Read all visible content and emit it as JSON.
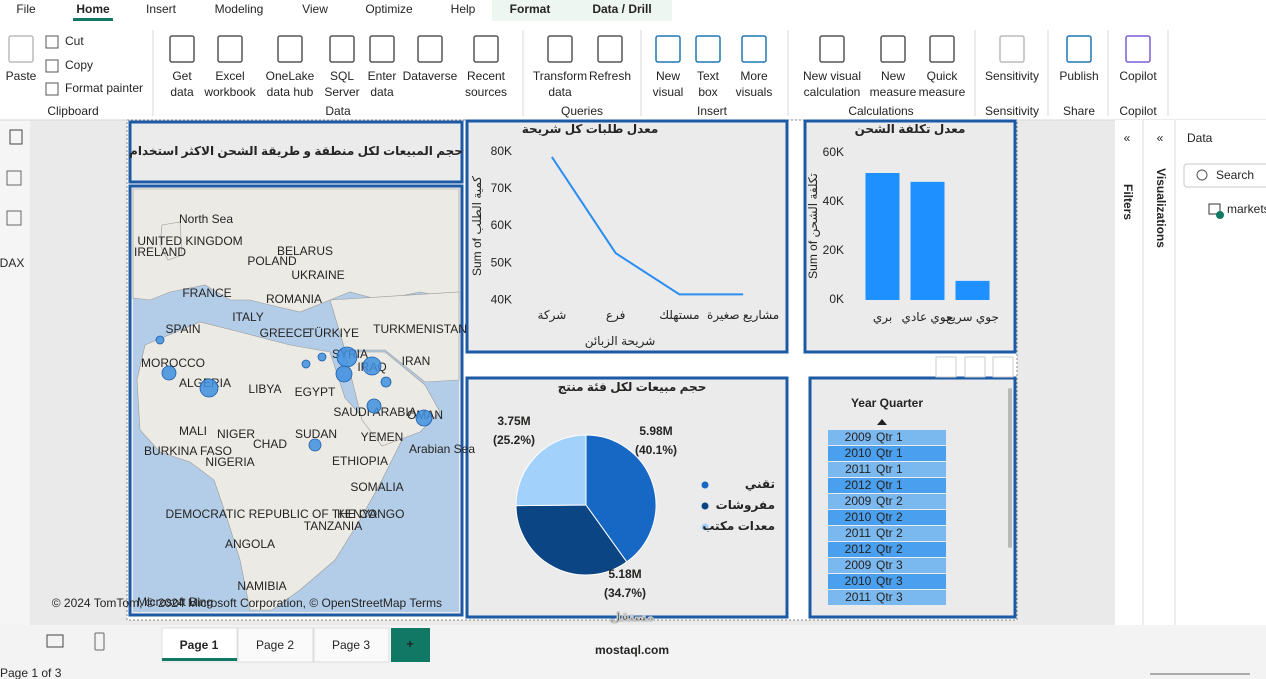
{
  "ribbon": {
    "tabs": [
      "File",
      "Home",
      "Insert",
      "Modeling",
      "View",
      "Optimize",
      "Help"
    ],
    "contextual_tabs": [
      "Format",
      "Data / Drill"
    ],
    "active_tab": 1,
    "groups": [
      {
        "name": "Clipboard",
        "buttons": [
          [
            "Paste"
          ],
          [
            "Cut"
          ],
          [
            "Copy"
          ],
          [
            "Format painter"
          ]
        ]
      },
      {
        "name": "Data",
        "buttons": [
          [
            "Get",
            "data"
          ],
          [
            "Excel",
            "workbook"
          ],
          [
            "OneLake",
            "data hub"
          ],
          [
            "SQL",
            "Server"
          ],
          [
            "Enter",
            "data"
          ],
          [
            "Dataverse"
          ],
          [
            "Recent",
            "sources"
          ]
        ]
      },
      {
        "name": "Queries",
        "buttons": [
          [
            "Transform",
            "data"
          ],
          [
            "Refresh"
          ]
        ]
      },
      {
        "name": "Insert",
        "buttons": [
          [
            "New",
            "visual"
          ],
          [
            "Text",
            "box"
          ],
          [
            "More",
            "visuals"
          ]
        ]
      },
      {
        "name": "Calculations",
        "buttons": [
          [
            "New visual",
            "calculation"
          ],
          [
            "New",
            "measure"
          ],
          [
            "Quick",
            "measure"
          ]
        ]
      },
      {
        "name": "Sensitivity",
        "buttons": [
          [
            "Sensitivity"
          ]
        ]
      },
      {
        "name": "Share",
        "buttons": [
          [
            "Publish"
          ]
        ]
      },
      {
        "name": "Copilot",
        "buttons": [
          [
            "Copilot"
          ]
        ]
      }
    ]
  },
  "left_nav": {
    "dax": "DAX"
  },
  "report": {
    "title_card": "حجم المبيعات لكل منطقة و طريقة الشحن الاكثر استخدام",
    "map": {
      "labels": [
        "North Sea",
        "IRELAND",
        "UNITED KINGDOM",
        "BELARUS",
        "POLAND",
        "UKRAINE",
        "FRANCE",
        "ROMANIA",
        "ITALY",
        "SPAIN",
        "GREECE",
        "TÜRKIYE",
        "TURKMENISTAN",
        "SYRIA",
        "IRAQ",
        "IRAN",
        "MOROCCO",
        "ALGERIA",
        "LIBYA",
        "EGYPT",
        "SAUDI ARABIA",
        "OMAN",
        "YEMEN",
        "MALI",
        "NIGER",
        "CHAD",
        "SUDAN",
        "BURKINA FASO",
        "NIGERIA",
        "ETHIOPIA",
        "Arabian Sea",
        "SOMALIA",
        "KENYA",
        "DEMOCRATIC REPUBLIC OF THE CONGO",
        "TANZANIA",
        "ANGOLA",
        "NAMIBIA"
      ],
      "logo": "Microsoft Bing",
      "attribution": "© 2024 TomTom, © 2024 Microsoft Corporation, © OpenStreetMap  Terms"
    }
  },
  "chart_data": [
    {
      "type": "line",
      "title": "معدل طلبات كل شريحة",
      "x_label": "شريحة الزبائن",
      "y_label": "Sum of كمية الطلب",
      "color": "#2b8ef0",
      "categories": [
        "شركة",
        "فرع",
        "مستهلك",
        "مشاريع صغيرة"
      ],
      "values": [
        78600,
        52700,
        41600,
        41600
      ],
      "ylim": [
        39000,
        81000
      ],
      "yticks": [
        {
          "value": 40000,
          "label": "40K"
        },
        {
          "value": 50000,
          "label": "50K"
        },
        {
          "value": 60000,
          "label": "60K"
        },
        {
          "value": 70000,
          "label": "70K"
        },
        {
          "value": 80000,
          "label": "80K"
        }
      ],
      "grid": false
    },
    {
      "type": "bar",
      "title": "معدل تكلفة الشحن",
      "y_label": "Sum of تكلفة الشحن",
      "color": "#1e90ff",
      "categories": [
        "بري",
        "جوي عادي",
        "جوي سريع"
      ],
      "values": [
        51800,
        48200,
        7800
      ],
      "ylim": [
        0,
        62000
      ],
      "yticks": [
        {
          "value": 0,
          "label": "0K"
        },
        {
          "value": 20000,
          "label": "20K"
        },
        {
          "value": 40000,
          "label": "40K"
        },
        {
          "value": 60000,
          "label": "60K"
        }
      ],
      "grid": false
    },
    {
      "type": "pie",
      "title": "حجم مبيعات لكل فئة منتج",
      "categories": [
        "تقني",
        "مفروشات",
        "معدات مكتب"
      ],
      "values": [
        5980000,
        5180000,
        3750000
      ],
      "value_labels": [
        [
          "5.98M",
          "(40.1%)"
        ],
        [
          "5.18M",
          "(34.7%)"
        ],
        [
          "3.75M",
          "(25.2%)"
        ]
      ],
      "colors": [
        "#1668c4",
        "#0b4584",
        "#a2d2fb"
      ],
      "legend": "right"
    }
  ],
  "slicer": {
    "title": "Year Quarter",
    "rows": [
      [
        "2009",
        "Qtr 1"
      ],
      [
        "2010",
        "Qtr 1"
      ],
      [
        "2011",
        "Qtr 1"
      ],
      [
        "2012",
        "Qtr 1"
      ],
      [
        "2009",
        "Qtr 2"
      ],
      [
        "2010",
        "Qtr 2"
      ],
      [
        "2011",
        "Qtr 2"
      ],
      [
        "2012",
        "Qtr 2"
      ],
      [
        "2009",
        "Qtr 3"
      ],
      [
        "2010",
        "Qtr 3"
      ],
      [
        "2011",
        "Qtr 3"
      ]
    ]
  },
  "panes": {
    "filters": "Filters",
    "visualizations": "Visualizations",
    "data": "Data",
    "search": "Search",
    "tables": [
      "markets"
    ]
  },
  "pages": {
    "tabs": [
      "Page 1",
      "Page 2",
      "Page 3"
    ],
    "add": "+",
    "status": "Page 1 of 3"
  },
  "watermark": [
    "مستقل",
    "mostaql.com"
  ]
}
